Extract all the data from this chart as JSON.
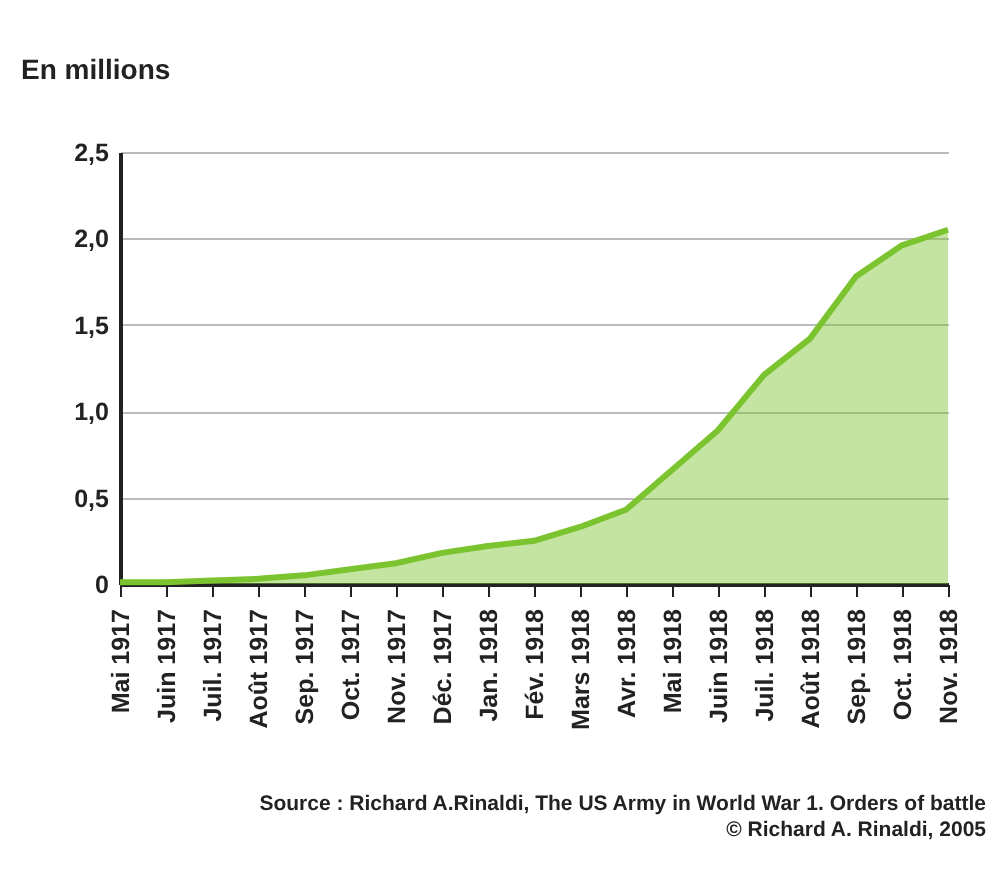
{
  "chart_data": {
    "type": "area",
    "ylabel": "En millions",
    "categories": [
      "Mai 1917",
      "Juin 1917",
      "Juil. 1917",
      "Août 1917",
      "Sep. 1917",
      "Oct. 1917",
      "Nov. 1917",
      "Déc. 1917",
      "Jan. 1918",
      "Fév. 1918",
      "Mars 1918",
      "Avr. 1918",
      "Mai 1918",
      "Juin 1918",
      "Juil. 1918",
      "Août 1918",
      "Sep. 1918",
      "Oct. 1918",
      "Nov. 1918"
    ],
    "series": [
      {
        "color": "#7cc42f",
        "values": [
          0.01,
          0.01,
          0.02,
          0.03,
          0.05,
          0.085,
          0.12,
          0.18,
          0.22,
          0.25,
          0.33,
          0.43,
          0.66,
          0.89,
          1.21,
          1.42,
          1.78,
          1.96,
          2.05
        ]
      }
    ],
    "ylim": [
      0,
      2.5
    ],
    "yticks": [
      0,
      {
        "value": 0.5,
        "label": "0,5"
      },
      {
        "value": 1,
        "label": "1,0"
      },
      {
        "value": 1.5,
        "label": "1,5"
      },
      {
        "value": 2,
        "label": "2,0"
      },
      {
        "value": 2.5,
        "label": "2,5"
      }
    ],
    "grid": "y",
    "annotations": [
      "Source : Richard A.Rinaldi, The US Army in World War 1. Orders of battle",
      "© Richard A. Rinaldi, 2005"
    ]
  }
}
